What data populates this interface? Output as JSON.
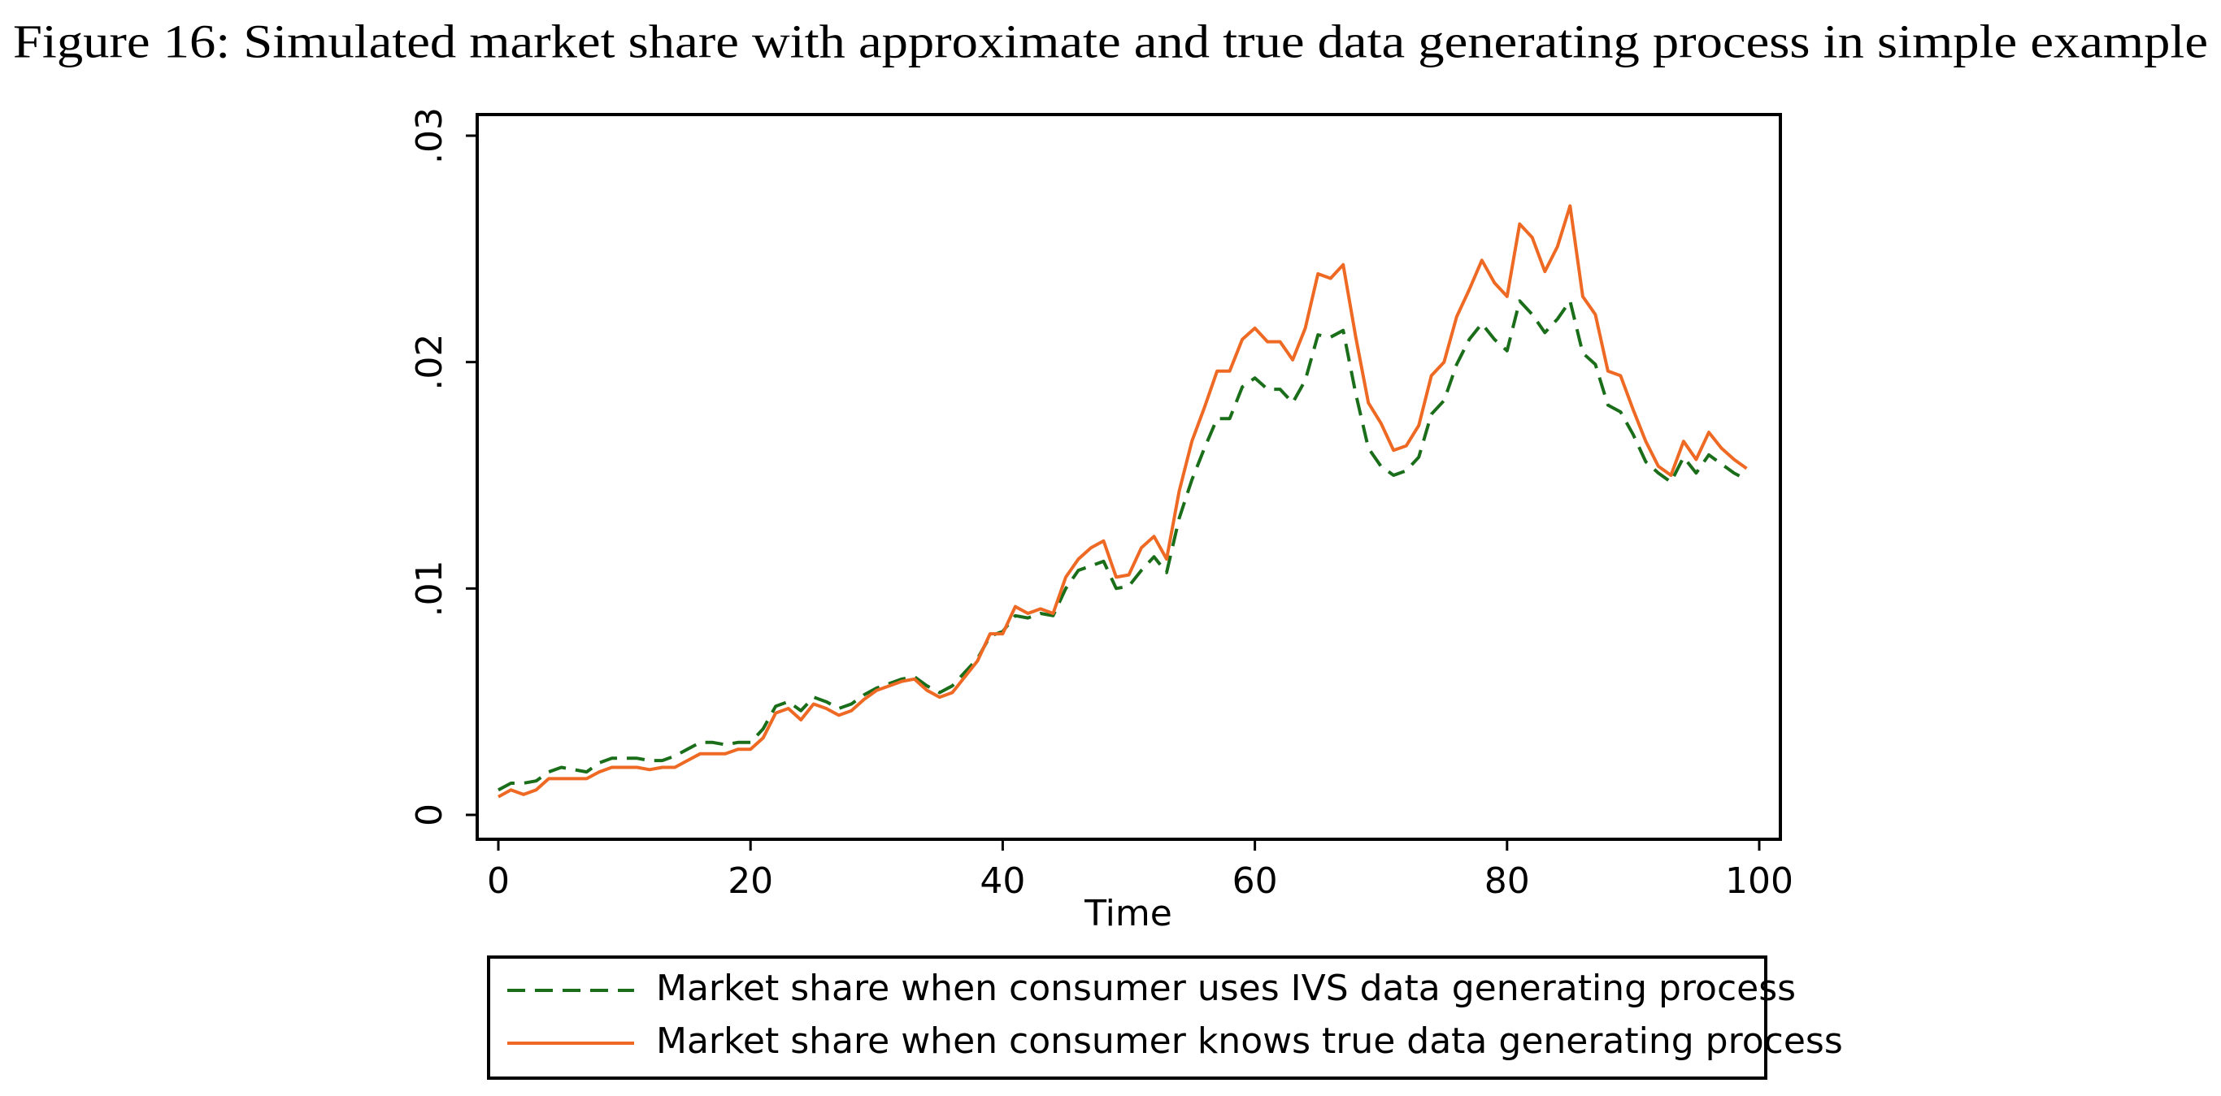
{
  "chart_data": {
    "type": "line",
    "title": "Figure 16: Simulated market share with approximate and true data generating process in simple example",
    "x_label": "Time",
    "x": [
      0,
      1,
      2,
      3,
      4,
      5,
      6,
      7,
      8,
      9,
      10,
      11,
      12,
      13,
      14,
      15,
      16,
      17,
      18,
      19,
      20,
      21,
      22,
      23,
      24,
      25,
      26,
      27,
      28,
      29,
      30,
      31,
      32,
      33,
      34,
      35,
      36,
      37,
      38,
      39,
      40,
      41,
      42,
      43,
      44,
      45,
      46,
      47,
      48,
      49,
      50,
      51,
      52,
      53,
      54,
      55,
      56,
      57,
      58,
      59,
      60,
      61,
      62,
      63,
      64,
      65,
      66,
      67,
      68,
      69,
      70,
      71,
      72,
      73,
      74,
      75,
      76,
      77,
      78,
      79,
      80,
      81,
      82,
      83,
      84,
      85,
      86,
      87,
      88,
      89,
      90,
      91,
      92,
      93,
      94,
      95,
      96,
      97,
      98,
      99
    ],
    "series": [
      {
        "name": "Market share when consumer uses IVS data generating process",
        "color": "#1a6e1a",
        "dash": true,
        "values": [
          0.0011,
          0.0014,
          0.0014,
          0.0015,
          0.0019,
          0.0021,
          0.002,
          0.0019,
          0.0023,
          0.0025,
          0.0025,
          0.0025,
          0.0024,
          0.0024,
          0.0026,
          0.0029,
          0.0032,
          0.0032,
          0.0031,
          0.0032,
          0.0032,
          0.0038,
          0.0048,
          0.005,
          0.0046,
          0.0052,
          0.005,
          0.0047,
          0.0049,
          0.0053,
          0.0056,
          0.0058,
          0.006,
          0.0061,
          0.0057,
          0.0054,
          0.0057,
          0.0063,
          0.0069,
          0.0079,
          0.0081,
          0.0088,
          0.0087,
          0.0089,
          0.0088,
          0.01,
          0.0108,
          0.011,
          0.0112,
          0.01,
          0.0101,
          0.0108,
          0.0114,
          0.0107,
          0.0131,
          0.0148,
          0.0162,
          0.0175,
          0.0175,
          0.0189,
          0.0193,
          0.0188,
          0.0188,
          0.0182,
          0.0192,
          0.0212,
          0.0211,
          0.0214,
          0.0186,
          0.0162,
          0.0154,
          0.015,
          0.0152,
          0.0158,
          0.0177,
          0.0183,
          0.0199,
          0.021,
          0.0217,
          0.021,
          0.0205,
          0.0227,
          0.0221,
          0.0213,
          0.0219,
          0.0227,
          0.0204,
          0.0199,
          0.0181,
          0.0178,
          0.0168,
          0.0156,
          0.0151,
          0.0147,
          0.0158,
          0.0151,
          0.0159,
          0.0155,
          0.0151,
          0.0148
        ]
      },
      {
        "name": "Market share when consumer knows true data generating process",
        "color": "#ee6a24",
        "dash": false,
        "values": [
          0.0008,
          0.0011,
          0.0009,
          0.0011,
          0.0016,
          0.0016,
          0.0016,
          0.0016,
          0.0019,
          0.0021,
          0.0021,
          0.0021,
          0.002,
          0.0021,
          0.0021,
          0.0024,
          0.0027,
          0.0027,
          0.0027,
          0.0029,
          0.0029,
          0.0034,
          0.0045,
          0.0047,
          0.0042,
          0.0049,
          0.0047,
          0.0044,
          0.0046,
          0.0051,
          0.0055,
          0.0057,
          0.0059,
          0.006,
          0.0055,
          0.0052,
          0.0054,
          0.0061,
          0.0068,
          0.008,
          0.008,
          0.0092,
          0.0089,
          0.0091,
          0.0089,
          0.0105,
          0.0113,
          0.0118,
          0.0121,
          0.0105,
          0.0106,
          0.0118,
          0.0123,
          0.0113,
          0.0143,
          0.0165,
          0.018,
          0.0196,
          0.0196,
          0.021,
          0.0215,
          0.0209,
          0.0209,
          0.0201,
          0.0215,
          0.0239,
          0.0237,
          0.0243,
          0.0211,
          0.0182,
          0.0173,
          0.0161,
          0.0163,
          0.0172,
          0.0194,
          0.02,
          0.022,
          0.0232,
          0.0245,
          0.0235,
          0.0229,
          0.0261,
          0.0255,
          0.024,
          0.0251,
          0.0269,
          0.0229,
          0.0221,
          0.0196,
          0.0194,
          0.0179,
          0.0165,
          0.0154,
          0.015,
          0.0165,
          0.0157,
          0.0169,
          0.0162,
          0.0157,
          0.0153
        ]
      }
    ],
    "xlim": [
      0,
      100
    ],
    "xticks": [
      0,
      20,
      40,
      60,
      80,
      100
    ],
    "ylim": [
      0,
      0.03
    ],
    "yticks": [
      0,
      {
        "value": 0.01,
        "label": ".01"
      },
      {
        "value": 0.02,
        "label": ".02"
      },
      {
        "value": 0.03,
        "label": ".03"
      }
    ],
    "grid": false
  }
}
